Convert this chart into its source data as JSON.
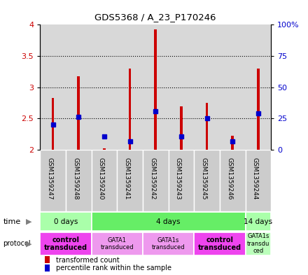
{
  "title": "GDS5368 / A_23_P170246",
  "samples": [
    "GSM1359247",
    "GSM1359248",
    "GSM1359240",
    "GSM1359241",
    "GSM1359242",
    "GSM1359243",
    "GSM1359245",
    "GSM1359246",
    "GSM1359244"
  ],
  "bar_bottoms": [
    2.0,
    2.0,
    2.0,
    2.0,
    2.0,
    2.0,
    2.0,
    2.0,
    2.0
  ],
  "bar_tops": [
    2.83,
    3.18,
    2.02,
    3.3,
    3.93,
    2.7,
    2.75,
    2.23,
    3.3
  ],
  "blue_y": [
    2.4,
    2.53,
    2.22,
    2.14,
    2.62,
    2.21,
    2.5,
    2.14,
    2.58
  ],
  "ylim": [
    2.0,
    4.0
  ],
  "yticks_left": [
    2.0,
    2.5,
    3.0,
    3.5,
    4.0
  ],
  "ytick_labels_left": [
    "2",
    "2.5",
    "3",
    "3.5",
    "4"
  ],
  "yticks_right": [
    0,
    25,
    50,
    75,
    100
  ],
  "ytick_labels_right": [
    "0",
    "25",
    "50",
    "75",
    "100%"
  ],
  "ylabel_left_color": "#cc0000",
  "ylabel_right_color": "#0000cc",
  "bar_color": "#cc0000",
  "blue_color": "#0000cc",
  "time_groups": [
    {
      "label": "0 days",
      "cols": [
        0,
        1
      ],
      "color": "#aaffaa"
    },
    {
      "label": "4 days",
      "cols": [
        2,
        3,
        4,
        5,
        6,
        7
      ],
      "color": "#66ee66"
    },
    {
      "label": "14 days",
      "cols": [
        8
      ],
      "color": "#aaffaa"
    }
  ],
  "protocol_groups": [
    {
      "label": "control\ntransduced",
      "cols": [
        0,
        1
      ],
      "color": "#ee44ee",
      "bold": true
    },
    {
      "label": "GATA1\ntransduced",
      "cols": [
        2,
        3
      ],
      "color": "#ee99ee",
      "bold": false
    },
    {
      "label": "GATA1s\ntransduced",
      "cols": [
        4,
        5
      ],
      "color": "#ee99ee",
      "bold": false
    },
    {
      "label": "control\ntransduced",
      "cols": [
        6,
        7
      ],
      "color": "#ee44ee",
      "bold": true
    },
    {
      "label": "GATA1s\ntransdu\nced",
      "cols": [
        8
      ],
      "color": "#bbffbb",
      "bold": false
    }
  ],
  "legend_items": [
    {
      "color": "#cc0000",
      "label": "transformed count"
    },
    {
      "color": "#0000cc",
      "label": "percentile rank within the sample"
    }
  ],
  "bg_color": "#ffffff",
  "plot_bg_color": "#d8d8d8",
  "sample_area_color": "#cccccc",
  "n_samples": 9
}
